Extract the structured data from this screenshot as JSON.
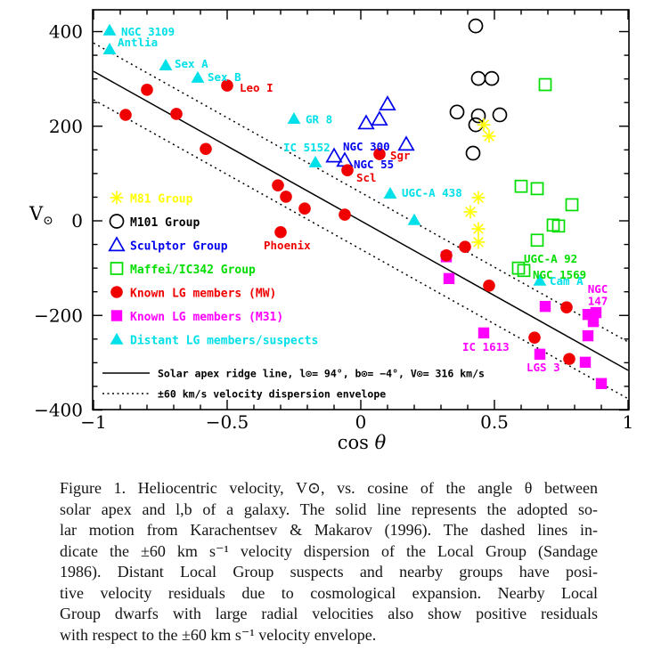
{
  "figure": {
    "axes": {
      "ylabel_main": "V",
      "ylabel_sub": "⊙",
      "xlabel_roman": "cos",
      "xlabel_greek": "θ",
      "x_ticks": [
        {
          "v": -1,
          "label": "−1"
        },
        {
          "v": -0.5,
          "label": "−0.5"
        },
        {
          "v": 0,
          "label": "0"
        },
        {
          "v": 0.5,
          "label": "0.5"
        },
        {
          "v": 1,
          "label": "1"
        }
      ],
      "y_ticks": [
        {
          "v": 400,
          "label": "400"
        },
        {
          "v": 200,
          "label": "200"
        },
        {
          "v": 0,
          "label": "0"
        },
        {
          "v": -200,
          "label": "−200"
        },
        {
          "v": -400,
          "label": "−400"
        }
      ]
    },
    "legend": {
      "entries": [
        {
          "label": "M81 Group",
          "marker": "asterisk",
          "color": "#ffff00"
        },
        {
          "label": "M101 Group",
          "marker": "circle-open",
          "color": "#000000"
        },
        {
          "label": "Sculptor Group",
          "marker": "triangle-open",
          "color": "#0000ee"
        },
        {
          "label": "Maffei/IC342 Group",
          "marker": "square-open",
          "color": "#00dd00"
        },
        {
          "label": "Known LG members (MW)",
          "marker": "circle",
          "color": "#f00000"
        },
        {
          "label": "Known LG members (M31)",
          "marker": "square",
          "color": "#ff00ff"
        },
        {
          "label": "Distant LG members/suspects",
          "marker": "triangle",
          "color": "#00e0e8"
        }
      ],
      "line_entries": [
        {
          "label": "Solar apex ridge line, l⊙= 94°, b⊙= −4°, V⊙= 316 km/s",
          "style": "solid"
        },
        {
          "label": "±60 km/s velocity dispersion envelope",
          "style": "dotted"
        }
      ]
    }
  },
  "chart_data": {
    "type": "scatter",
    "title": "",
    "xlabel": "cos θ",
    "ylabel": "V⊙ (heliocentric velocity, km/s)",
    "xlim": [
      -1,
      1
    ],
    "ylim": [
      -400,
      445
    ],
    "grid": false,
    "legend_position": "inside-left-middle",
    "lines": [
      {
        "name": "Solar apex ridge line",
        "style": "solid",
        "endpoints": [
          [
            -1,
            316
          ],
          [
            1,
            -316
          ]
        ]
      },
      {
        "name": "+60 km/s envelope",
        "style": "dotted",
        "endpoints": [
          [
            -1,
            376
          ],
          [
            1,
            -256
          ]
        ]
      },
      {
        "name": "−60 km/s envelope",
        "style": "dotted",
        "endpoints": [
          [
            -1,
            256
          ],
          [
            1,
            -376
          ]
        ]
      }
    ],
    "series": [
      {
        "name": "Maffei/IC342 Group",
        "marker": "square-open",
        "color": "#00dd00",
        "points": [
          {
            "x": 0.69,
            "v": 288
          },
          {
            "x": 0.6,
            "v": 73
          },
          {
            "x": 0.66,
            "v": 68
          },
          {
            "x": 0.79,
            "v": 34
          },
          {
            "x": 0.72,
            "v": -9
          },
          {
            "x": 0.74,
            "v": -11
          },
          {
            "x": 0.66,
            "v": -41
          },
          {
            "x": 0.59,
            "v": -100,
            "label": "UGC-A 92",
            "lx": 6,
            "ly": -6
          },
          {
            "x": 0.61,
            "v": -105,
            "label": "NGC 1569",
            "lx": 10,
            "ly": 9
          }
        ]
      },
      {
        "name": "M101 Group",
        "marker": "circle-open",
        "color": "#000000",
        "points": [
          {
            "x": 0.43,
            "v": 412
          },
          {
            "x": 0.44,
            "v": 301
          },
          {
            "x": 0.49,
            "v": 301
          },
          {
            "x": 0.36,
            "v": 230
          },
          {
            "x": 0.44,
            "v": 222
          },
          {
            "x": 0.43,
            "v": 203
          },
          {
            "x": 0.52,
            "v": 224
          },
          {
            "x": 0.42,
            "v": 143
          }
        ]
      },
      {
        "name": "Sculptor Group",
        "marker": "triangle-open",
        "color": "#0000ee",
        "points": [
          {
            "x": 0.1,
            "v": 247
          },
          {
            "x": 0.07,
            "v": 215
          },
          {
            "x": 0.02,
            "v": 207
          },
          {
            "x": 0.17,
            "v": 162
          },
          {
            "x": -0.1,
            "v": 137,
            "label": "NGC 300",
            "lx": 10,
            "ly": -6
          },
          {
            "x": -0.06,
            "v": 128,
            "label": "NGC 55",
            "lx": 10,
            "ly": 9
          }
        ]
      },
      {
        "name": "M81 Group",
        "marker": "asterisk",
        "color": "#ffff00",
        "points": [
          {
            "x": 0.46,
            "v": 203
          },
          {
            "x": 0.48,
            "v": 179
          },
          {
            "x": 0.44,
            "v": 49
          },
          {
            "x": 0.41,
            "v": 19
          },
          {
            "x": 0.44,
            "v": -17
          },
          {
            "x": 0.44,
            "v": -45
          }
        ]
      },
      {
        "name": "Distant LG members/suspects",
        "marker": "triangle",
        "color": "#00e0e8",
        "points": [
          {
            "x": -0.94,
            "v": 403,
            "label": "NGC 3109",
            "lx": 13,
            "ly": 6
          },
          {
            "x": -0.94,
            "v": 363,
            "label": "Antlia",
            "lx": 9,
            "ly": -3
          },
          {
            "x": -0.73,
            "v": 329,
            "label": "Sex A",
            "lx": 10,
            "ly": 3
          },
          {
            "x": -0.61,
            "v": 303,
            "label": "Sex B",
            "lx": 11,
            "ly": 4
          },
          {
            "x": -0.25,
            "v": 216,
            "label": "GR 8",
            "lx": 13,
            "ly": 5
          },
          {
            "x": -0.17,
            "v": 124,
            "label": "IC 5152",
            "lx": -36,
            "ly": -12
          },
          {
            "x": 0.11,
            "v": 58,
            "label": "UGC-A 438",
            "lx": 13,
            "ly": 4
          },
          {
            "x": 0.2,
            "v": 2
          },
          {
            "x": 0.67,
            "v": -126,
            "label": "Cam A",
            "lx": 11,
            "ly": 5
          }
        ]
      },
      {
        "name": "Known LG members (M31)",
        "marker": "square",
        "color": "#ff00ff",
        "points": [
          {
            "x": 0.32,
            "v": -76
          },
          {
            "x": 0.33,
            "v": -122
          },
          {
            "x": 0.46,
            "v": -237,
            "label": "IC 1613",
            "lx": -24,
            "ly": 20
          },
          {
            "x": 0.69,
            "v": -181
          },
          {
            "x": 0.85,
            "v": -198
          },
          {
            "x": 0.88,
            "v": -194,
            "label": "NGC\n147",
            "lx": 2,
            "ly": -22,
            "anchor": "middle"
          },
          {
            "x": 0.87,
            "v": -213
          },
          {
            "x": 0.85,
            "v": -243
          },
          {
            "x": 0.67,
            "v": -282,
            "label": "LGS 3",
            "lx": -15,
            "ly": 19
          },
          {
            "x": 0.84,
            "v": -299
          },
          {
            "x": 0.9,
            "v": -344
          }
        ]
      },
      {
        "name": "Known LG members (MW)",
        "marker": "circle",
        "color": "#f00000",
        "points": [
          {
            "x": -0.88,
            "v": 224
          },
          {
            "x": -0.8,
            "v": 277
          },
          {
            "x": -0.69,
            "v": 226
          },
          {
            "x": -0.58,
            "v": 152
          },
          {
            "x": -0.5,
            "v": 286,
            "label": "Leo I",
            "lx": 14,
            "ly": 7
          },
          {
            "x": -0.31,
            "v": 75
          },
          {
            "x": -0.28,
            "v": 51
          },
          {
            "x": -0.21,
            "v": 26
          },
          {
            "x": -0.06,
            "v": 13
          },
          {
            "x": -0.3,
            "v": -24,
            "label": "Phoenix",
            "lx": -19,
            "ly": 19
          },
          {
            "x": 0.07,
            "v": 141,
            "label": "Sgr",
            "lx": 12,
            "ly": 6
          },
          {
            "x": -0.05,
            "v": 107,
            "label": "Scl",
            "lx": 10,
            "ly": 13
          },
          {
            "x": 0.39,
            "v": -55
          },
          {
            "x": 0.32,
            "v": -73
          },
          {
            "x": 0.48,
            "v": -137
          },
          {
            "x": 0.77,
            "v": -183
          },
          {
            "x": 0.65,
            "v": -247
          },
          {
            "x": 0.78,
            "v": -292
          }
        ]
      }
    ]
  },
  "caption": {
    "lines": [
      "Figure 1.  Heliocentric velocity, V⊙, vs. cosine of the angle θ between",
      "solar apex and l,b of a galaxy. The solid line represents the adopted so-",
      "lar motion from Karachentsev & Makarov (1996). The dashed lines in-",
      "dicate the ±60 km s⁻¹ velocity dispersion of the Local Group (Sandage",
      "1986). Distant Local Group suspects and nearby groups have posi-",
      "tive velocity residuals due to cosmological expansion. Nearby Local",
      "Group dwarfs with large radial velocities also show positive residuals",
      "with respect to the ±60 km s⁻¹ velocity envelope."
    ]
  }
}
